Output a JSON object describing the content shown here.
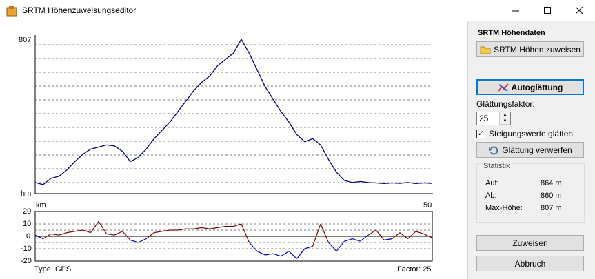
{
  "window": {
    "title": "SRTM Höhenzuweisungseditor"
  },
  "chart_data": [
    {
      "type": "line",
      "title": "",
      "xlabel": "km",
      "ylabel": "hm",
      "xlim": [
        0,
        50
      ],
      "ylim": [
        80,
        807
      ],
      "y_max_label": "807",
      "x_start_label": "km",
      "x_end_label": "50",
      "y_unit_label": "hm",
      "grid": true,
      "line_color": "#000080",
      "x": [
        0,
        1,
        2,
        3,
        4,
        5,
        6,
        7,
        8,
        9,
        10,
        11,
        12,
        13,
        14,
        15,
        16,
        17,
        18,
        19,
        20,
        21,
        22,
        23,
        24,
        25,
        26,
        27,
        28,
        29,
        30,
        31,
        32,
        33,
        34,
        35,
        36,
        37,
        38,
        39,
        40,
        41,
        42,
        43,
        44,
        45,
        46,
        47,
        48,
        49,
        50
      ],
      "y": [
        120,
        110,
        140,
        150,
        180,
        220,
        255,
        280,
        290,
        300,
        295,
        270,
        220,
        240,
        280,
        330,
        370,
        410,
        460,
        510,
        560,
        600,
        630,
        680,
        710,
        740,
        807,
        740,
        660,
        580,
        520,
        460,
        410,
        350,
        315,
        330,
        300,
        230,
        170,
        130,
        120,
        125,
        120,
        118,
        115,
        118,
        116,
        120,
        115,
        118,
        116
      ]
    },
    {
      "type": "line",
      "title": "",
      "xlabel": "",
      "ylabel": "",
      "xlim": [
        0,
        50
      ],
      "ylim": [
        -20,
        20
      ],
      "y_ticks": [
        "20",
        "10",
        "0",
        "-10",
        "-20"
      ],
      "grid": true,
      "positive_color": "#800000",
      "negative_color": "#0000cc",
      "x": [
        0,
        1,
        2,
        3,
        4,
        5,
        6,
        7,
        8,
        9,
        10,
        11,
        12,
        13,
        14,
        15,
        16,
        17,
        18,
        19,
        20,
        21,
        22,
        23,
        24,
        25,
        26,
        27,
        28,
        29,
        30,
        31,
        32,
        33,
        34,
        35,
        36,
        37,
        38,
        39,
        40,
        41,
        42,
        43,
        44,
        45,
        46,
        47,
        48,
        49,
        50
      ],
      "y": [
        1,
        -2,
        2,
        1,
        3,
        4,
        5,
        3,
        12,
        2,
        1,
        4,
        -3,
        -5,
        -2,
        3,
        4,
        5,
        5,
        6,
        6,
        7,
        6,
        7,
        8,
        8,
        10,
        -5,
        -12,
        -15,
        -14,
        -16,
        -12,
        -18,
        -10,
        -8,
        10,
        -5,
        -12,
        -4,
        -2,
        -4,
        1,
        5,
        -3,
        -2,
        3,
        -2,
        4,
        2,
        -1
      ]
    }
  ],
  "footer": {
    "type_label": "Type: GPS",
    "factor_label": "Factor: 25"
  },
  "panel": {
    "group_title": "SRTM Höhendaten",
    "assign_button": "SRTM Höhen zuweisen",
    "autosmooth_button": "Autoglättung",
    "smoothing_factor_label": "Glättungsfaktor:",
    "smoothing_factor_value": "25",
    "slope_checkbox_label": "Steigungswerte glätten",
    "slope_checkbox_checked": true,
    "discard_button": "Glättung verwerfen",
    "stats_title": "Statistik",
    "stats": [
      {
        "label": "Auf:",
        "value": "864 m"
      },
      {
        "label": "Ab:",
        "value": "860 m"
      },
      {
        "label": "Max-Höhe:",
        "value": "807 m"
      }
    ],
    "apply_button": "Zuweisen",
    "cancel_button": "Abbruch"
  }
}
